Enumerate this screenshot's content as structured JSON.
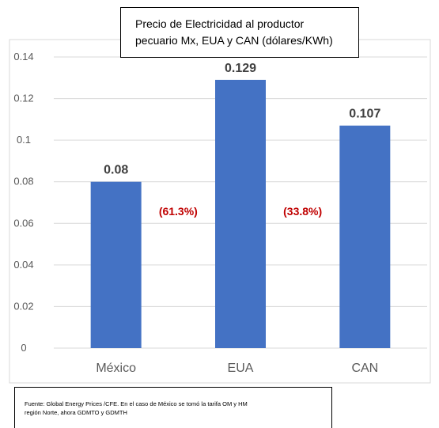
{
  "chart_data": {
    "type": "bar",
    "title_lines": [
      "Precio de Electricidad al  productor",
      "pecuario Mx, EUA y CAN (dólares/KWh)"
    ],
    "categories": [
      "México",
      "EUA",
      "CAN"
    ],
    "values": [
      0.08,
      0.129,
      0.107
    ],
    "data_labels": [
      "0.08",
      "0.129",
      "0.107"
    ],
    "ylim": [
      0,
      0.14
    ],
    "yticks": [
      0,
      0.02,
      0.04,
      0.06,
      0.08,
      0.1,
      0.12,
      0.14
    ],
    "ytick_labels": [
      "0",
      "0.02",
      "0.04",
      "0.06",
      "0.08",
      "0.1",
      "0.12",
      "0.14"
    ],
    "annotations": [
      "(61.3%)",
      "(33.8%)"
    ],
    "grid": true,
    "bar_color": "#4472c4",
    "annotation_color": "#c00000"
  },
  "source_lines": [
    "Fuente: Global Energy Prices /CFE. En el caso de México se tomó la tarifa OM y HM",
    "región Norte, ahora GDMTO y GDMTH"
  ]
}
